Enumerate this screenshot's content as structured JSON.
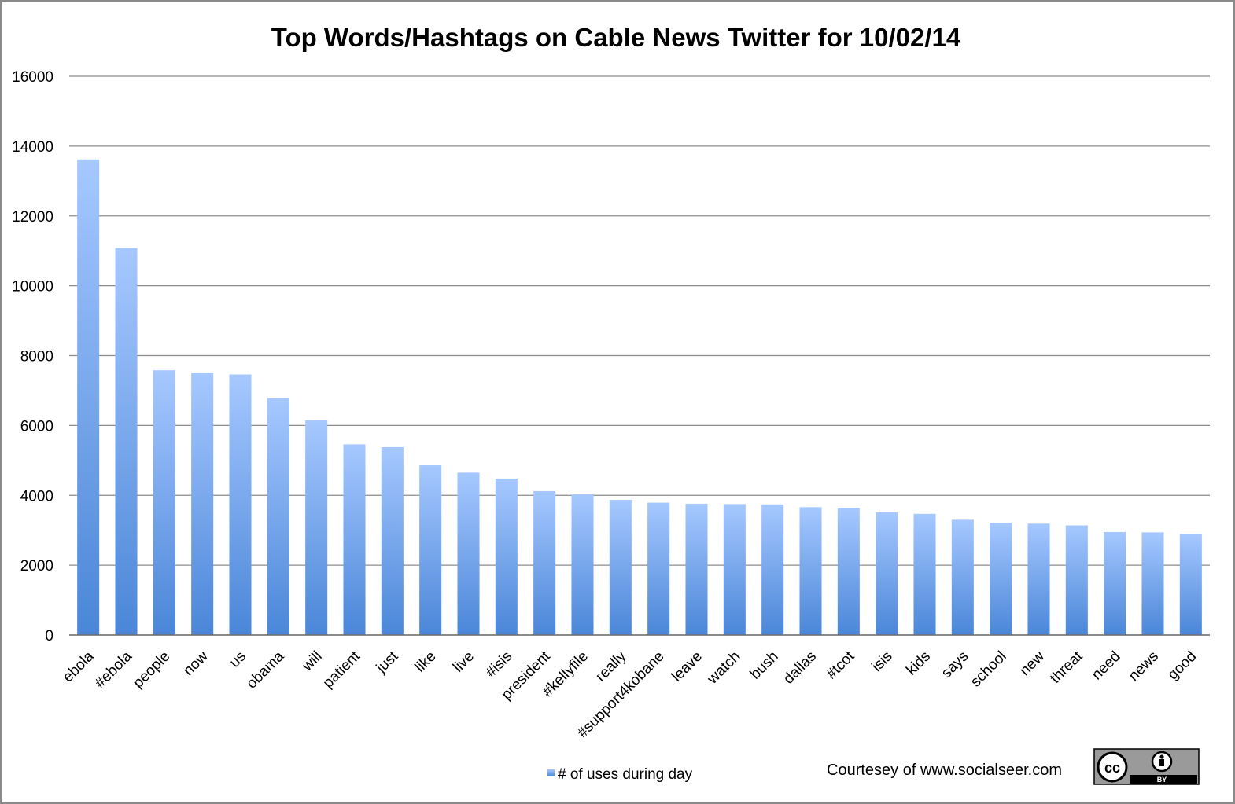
{
  "chart_data": {
    "type": "bar",
    "title": "Top Words/Hashtags on Cable News Twitter for 10/02/14",
    "xlabel": "",
    "ylabel": "",
    "ylim": [
      0,
      16000
    ],
    "yticks": [
      0,
      2000,
      4000,
      6000,
      8000,
      10000,
      12000,
      14000,
      16000
    ],
    "grid": true,
    "legend_position": "bottom",
    "categories": [
      "ebola",
      "#ebola",
      "people",
      "now",
      "us",
      "obama",
      "will",
      "patient",
      "just",
      "like",
      "live",
      "#isis",
      "president",
      "#kellyfile",
      "really",
      "#support4kobane",
      "leave",
      "watch",
      "bush",
      "dallas",
      "#tcot",
      "isis",
      "kids",
      "says",
      "school",
      "new",
      "threat",
      "need",
      "news",
      "good"
    ],
    "series": [
      {
        "name": "# of uses during day",
        "values": [
          13620,
          11080,
          7580,
          7510,
          7460,
          6780,
          6150,
          5460,
          5380,
          4860,
          4650,
          4480,
          4120,
          4030,
          3870,
          3790,
          3760,
          3750,
          3740,
          3660,
          3640,
          3510,
          3470,
          3300,
          3210,
          3190,
          3140,
          2950,
          2940,
          2890
        ]
      }
    ],
    "colors": {
      "bar_top": "#a6c8ff",
      "bar_bottom": "#4a86d8",
      "grid": "#8c8c8c"
    }
  },
  "credit": "Courtesey of www.socialseer.com",
  "license_badge": {
    "icons": [
      "cc-icon",
      "attribution-icon"
    ],
    "label": "BY"
  }
}
